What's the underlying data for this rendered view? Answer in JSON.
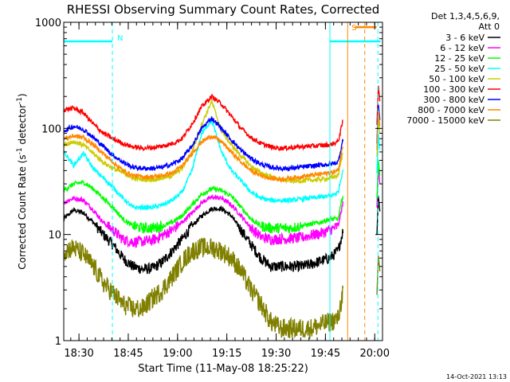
{
  "chart_data": {
    "type": "line",
    "title": "RHESSI Observing Summary Count Rates, Corrected",
    "xlabel": "Start Time (11-May-08 18:25:22)",
    "ylabel_main": "Corrected Count Rate (s",
    "ylabel_sup1": "-1",
    "ylabel_mid": " detector",
    "ylabel_sup2": "-1",
    "ylabel_end": ")",
    "y_scale": "log",
    "ylim": [
      1,
      1000
    ],
    "y_ticks": [
      {
        "value": 1,
        "label": "1"
      },
      {
        "value": 10,
        "label": "10"
      },
      {
        "value": 100,
        "label": "100"
      },
      {
        "value": 1000,
        "label": "1000"
      }
    ],
    "xlim_min": [
      0,
      97
    ],
    "x_ticks": [
      {
        "value": 4.633,
        "label": "18:30"
      },
      {
        "value": 19.633,
        "label": "18:45"
      },
      {
        "value": 34.633,
        "label": "19:00"
      },
      {
        "value": 49.633,
        "label": "19:15"
      },
      {
        "value": 64.633,
        "label": "19:30"
      },
      {
        "value": 79.633,
        "label": "19:45"
      },
      {
        "value": 94.633,
        "label": "20:00"
      }
    ],
    "x_minor_step": 2.5,
    "grid": false,
    "legend_header": [
      "Det 1,3,4,5,6,9,",
      "Att 0"
    ],
    "legend_placement": "right",
    "series": [
      {
        "name": "3 - 6 keV",
        "color": "#000000",
        "x": [
          0,
          3,
          6,
          9,
          12,
          15,
          18,
          21,
          24,
          27,
          30,
          33,
          36,
          39,
          42,
          45,
          48,
          51,
          54,
          57,
          60,
          63,
          66,
          69,
          72,
          75,
          78,
          81,
          83.5,
          85
        ],
        "values": [
          14,
          17,
          16,
          13,
          10,
          8,
          6,
          5,
          4.7,
          4.8,
          5.5,
          7,
          9,
          12,
          15,
          17.5,
          17.5,
          15,
          11,
          8,
          6,
          5,
          5,
          5,
          5,
          5.2,
          5.6,
          6,
          7,
          11
        ]
      },
      {
        "name": "6 - 12 keV",
        "color": "#ff00ff",
        "x": [
          0,
          3,
          6,
          9,
          12,
          15,
          18,
          21,
          24,
          27,
          30,
          33,
          36,
          39,
          42,
          45,
          48,
          51,
          54,
          57,
          60,
          63,
          66,
          69,
          72,
          75,
          78,
          81,
          83.5,
          85
        ],
        "values": [
          20,
          22,
          21,
          17,
          13,
          11,
          9,
          8.5,
          8.6,
          8.8,
          9.8,
          11,
          13,
          16,
          20,
          22.5,
          22,
          19,
          15,
          11.5,
          9.5,
          9,
          9.1,
          9.2,
          9.3,
          9.8,
          10.2,
          11,
          12,
          20
        ]
      },
      {
        "name": "12 - 25 keV",
        "color": "#00ff00",
        "x": [
          0,
          3,
          6,
          9,
          12,
          15,
          18,
          21,
          24,
          27,
          30,
          33,
          36,
          39,
          42,
          45,
          48,
          51,
          54,
          57,
          60,
          63,
          66,
          69,
          72,
          75,
          78,
          81,
          83.5,
          85
        ],
        "values": [
          26,
          30,
          31,
          27,
          22,
          18,
          14,
          12,
          11.5,
          11.5,
          12,
          13,
          15,
          19,
          24,
          27,
          26,
          23,
          18,
          14,
          12,
          11.5,
          11.5,
          11.5,
          12,
          12.5,
          13,
          14,
          14,
          24
        ]
      },
      {
        "name": "25 - 50 keV",
        "color": "#00ffff",
        "x": [
          0,
          3,
          6,
          9,
          12,
          15,
          18,
          21,
          24,
          27,
          30,
          33,
          36,
          39,
          42,
          45,
          48,
          51,
          54,
          57,
          60,
          63,
          66,
          69,
          72,
          75,
          78,
          81,
          83.5,
          85
        ],
        "values": [
          60,
          45,
          58,
          42,
          34,
          28,
          22,
          18,
          18,
          18,
          19,
          21,
          25,
          40,
          90,
          120,
          60,
          40,
          32,
          25,
          22,
          21,
          21,
          21,
          21.5,
          22,
          22.5,
          23,
          25,
          42
        ]
      },
      {
        "name": "50 - 100 keV",
        "color": "#cccc00",
        "x": [
          0,
          3,
          6,
          9,
          12,
          15,
          18,
          21,
          24,
          27,
          30,
          33,
          36,
          39,
          42,
          45,
          48,
          51,
          54,
          57,
          60,
          63,
          66,
          69,
          72,
          75,
          78,
          81,
          83.5,
          85
        ],
        "values": [
          70,
          75,
          70,
          58,
          48,
          42,
          38,
          34,
          33,
          33,
          34,
          36,
          42,
          60,
          110,
          180,
          95,
          70,
          55,
          44,
          38,
          35,
          33,
          32,
          32,
          32.5,
          33,
          34,
          36,
          60
        ]
      },
      {
        "name": "100 - 300 keV",
        "color": "#ff0000",
        "x": [
          0,
          3,
          6,
          9,
          12,
          15,
          18,
          21,
          24,
          27,
          30,
          33,
          36,
          39,
          42,
          45,
          48,
          51,
          54,
          57,
          60,
          63,
          66,
          69,
          72,
          75,
          78,
          81,
          83.5,
          85
        ],
        "values": [
          150,
          155,
          140,
          110,
          90,
          80,
          72,
          67,
          65,
          66,
          68,
          72,
          80,
          110,
          160,
          200,
          170,
          130,
          100,
          82,
          72,
          67,
          65,
          66,
          67,
          68,
          69,
          70,
          75,
          120
        ]
      },
      {
        "name": "300 - 800 keV",
        "color": "#0000ff",
        "x": [
          0,
          3,
          6,
          9,
          12,
          15,
          18,
          21,
          24,
          27,
          30,
          33,
          36,
          39,
          42,
          45,
          48,
          51,
          54,
          57,
          60,
          63,
          66,
          69,
          72,
          75,
          78,
          81,
          83.5,
          85
        ],
        "values": [
          95,
          105,
          98,
          82,
          68,
          56,
          48,
          43,
          42,
          42,
          43,
          46,
          52,
          68,
          100,
          125,
          100,
          78,
          62,
          52,
          46,
          43,
          42,
          42,
          43,
          44,
          45,
          46,
          48,
          80
        ]
      },
      {
        "name": "800 - 7000 keV",
        "color": "#ff8800",
        "x": [
          0,
          3,
          6,
          9,
          12,
          15,
          18,
          21,
          24,
          27,
          30,
          33,
          36,
          39,
          42,
          45,
          48,
          51,
          54,
          57,
          60,
          63,
          66,
          69,
          72,
          75,
          78,
          81,
          83.5,
          85
        ],
        "values": [
          80,
          85,
          82,
          70,
          58,
          48,
          40,
          36,
          35,
          35,
          36,
          38,
          44,
          58,
          75,
          85,
          75,
          60,
          48,
          40,
          36,
          34,
          33,
          34,
          35,
          36,
          37,
          38,
          40,
          70
        ]
      },
      {
        "name": "7000 - 15000 keV",
        "color": "#808000",
        "x": [
          0,
          3,
          6,
          9,
          12,
          15,
          18,
          21,
          24,
          27,
          30,
          33,
          36,
          39,
          42,
          45,
          48,
          51,
          54,
          57,
          60,
          63,
          66,
          69,
          72,
          75,
          78,
          81,
          83.5,
          85
        ],
        "values": [
          7,
          7.5,
          6.5,
          5,
          3.5,
          2.8,
          2.2,
          2,
          2,
          2.5,
          3,
          4,
          5.5,
          7,
          7.5,
          7.5,
          7,
          6,
          4.5,
          3,
          2.2,
          1.5,
          1.3,
          1.3,
          1.3,
          1.3,
          1.4,
          1.5,
          1.6,
          3
        ]
      }
    ],
    "annotations": {
      "night_bar": {
        "label": "N",
        "x0": 0,
        "x1": 14.8,
        "x_dashed": 14.8,
        "y": 660,
        "color": "#00ffff"
      },
      "saa_bar": {
        "label": "S",
        "x0": 88.6,
        "x1": 95.2,
        "x_solid": 86.4,
        "x_dashed": 91.6,
        "y": 900,
        "color": "#ff8800"
      },
      "night_bar2": {
        "x0": 81.0,
        "x1": 96.4,
        "x_solid": 81.0,
        "x_dashed": 95.6,
        "y": 660,
        "color": "#00ffff"
      }
    },
    "post_gap_series_x": [
      95.3,
      96.2
    ]
  },
  "footer": {
    "timestamp": "14-Oct-2021 13:13"
  }
}
